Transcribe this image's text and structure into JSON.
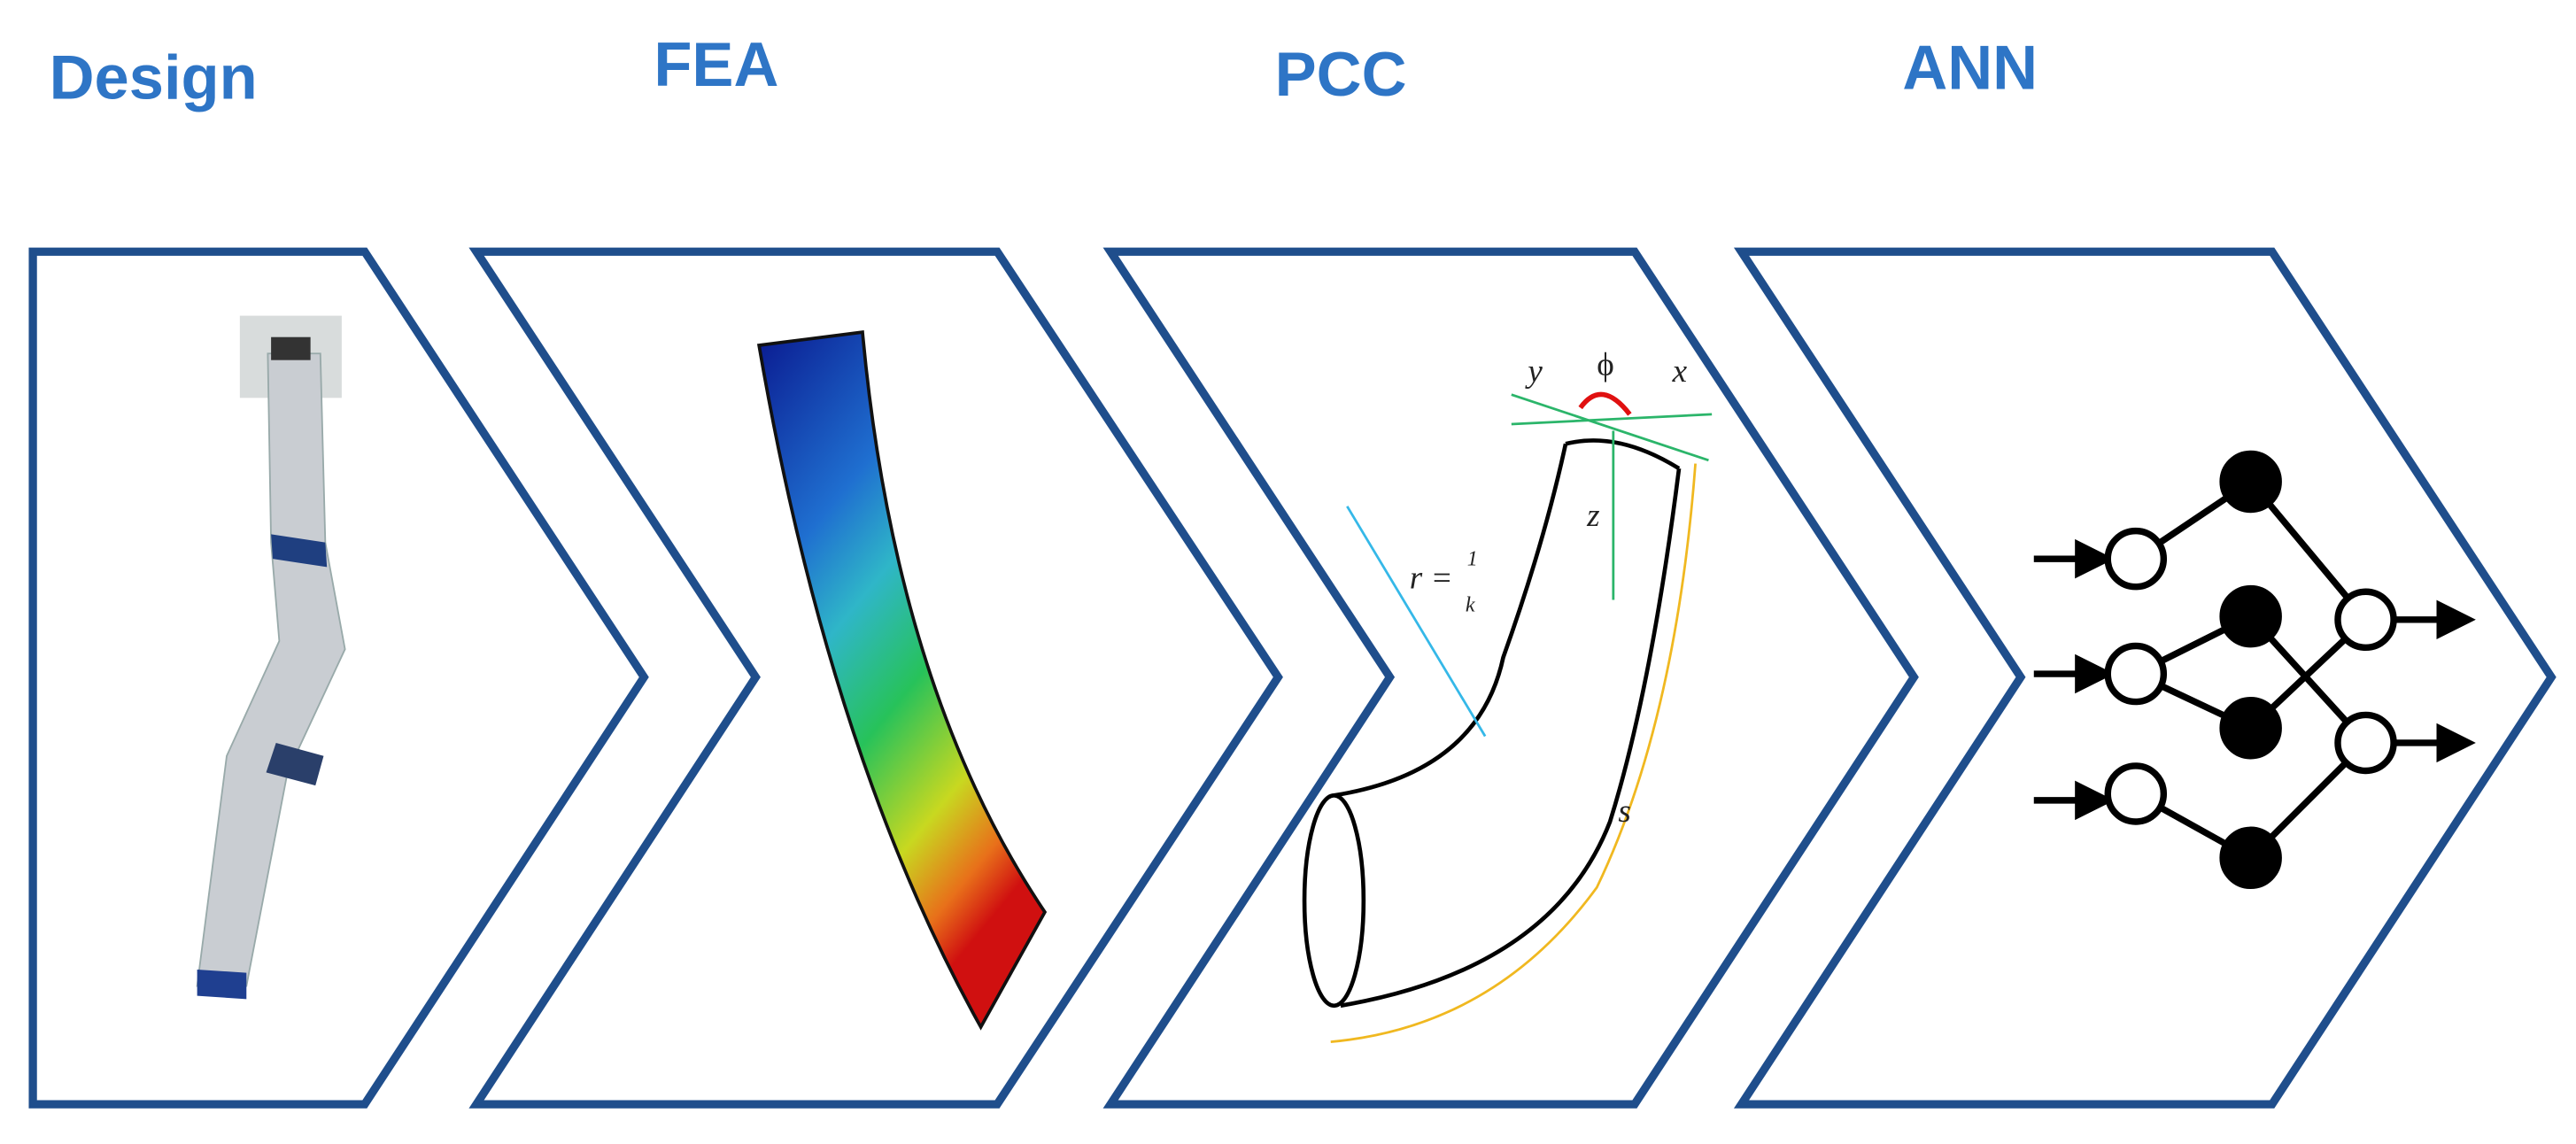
{
  "stages": [
    {
      "title": "Design"
    },
    {
      "title": "FEA"
    },
    {
      "title": "PCC",
      "labels": {
        "y": "y",
        "phi": "ϕ",
        "x": "x",
        "z": "z",
        "r": "r =",
        "r_num": "1",
        "r_den": "k",
        "s": "s"
      }
    },
    {
      "title": "ANN"
    }
  ]
}
